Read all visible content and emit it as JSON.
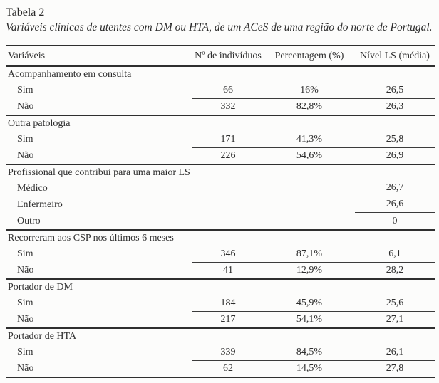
{
  "colors": {
    "ink": "#2b2b2b",
    "rule": "#2f2f2f",
    "background": "#fcfcfb"
  },
  "caption": {
    "title": "Tabela 2",
    "subtitle": "Variáveis clínicas de utentes com DM ou HTA, de um ACeS de uma região do norte de Portugal."
  },
  "table": {
    "headers": [
      "Variáveis",
      "Nº de indivíduos",
      "Percentagem (%)",
      "Nível LS (média)"
    ],
    "sections": [
      {
        "label": "Acompanhamento em consulta",
        "rows": [
          {
            "label": "Sim",
            "n": "66",
            "pct": "16%",
            "ls": "26,5"
          },
          {
            "label": "Não",
            "n": "332",
            "pct": "82,8%",
            "ls": "26,3"
          }
        ]
      },
      {
        "label": "Outra patologia",
        "rows": [
          {
            "label": "Sim",
            "n": "171",
            "pct": "41,3%",
            "ls": "25,8"
          },
          {
            "label": "Não",
            "n": "226",
            "pct": "54,6%",
            "ls": "26,9"
          }
        ]
      },
      {
        "label": "Profissional que contribui para uma maior LS",
        "rows": [
          {
            "label": "Médico",
            "n": "",
            "pct": "",
            "ls": "26,7"
          },
          {
            "label": "Enfermeiro",
            "n": "",
            "pct": "",
            "ls": "26,6"
          },
          {
            "label": "Outro",
            "n": "",
            "pct": "",
            "ls": "0"
          }
        ]
      },
      {
        "label": "Recorreram aos CSP nos últimos 6 meses",
        "rows": [
          {
            "label": "Sim",
            "n": "346",
            "pct": "87,1%",
            "ls": "6,1"
          },
          {
            "label": "Não",
            "n": "41",
            "pct": "12,9%",
            "ls": "28,2"
          }
        ]
      },
      {
        "label": "Portador de DM",
        "rows": [
          {
            "label": "Sim",
            "n": "184",
            "pct": "45,9%",
            "ls": "25,6"
          },
          {
            "label": "Não",
            "n": "217",
            "pct": "54,1%",
            "ls": "27,1"
          }
        ]
      },
      {
        "label": "Portador de HTA",
        "rows": [
          {
            "label": "Sim",
            "n": "339",
            "pct": "84,5%",
            "ls": "26,1"
          },
          {
            "label": "Não",
            "n": "62",
            "pct": "14,5%",
            "ls": "27,8"
          }
        ]
      }
    ]
  }
}
